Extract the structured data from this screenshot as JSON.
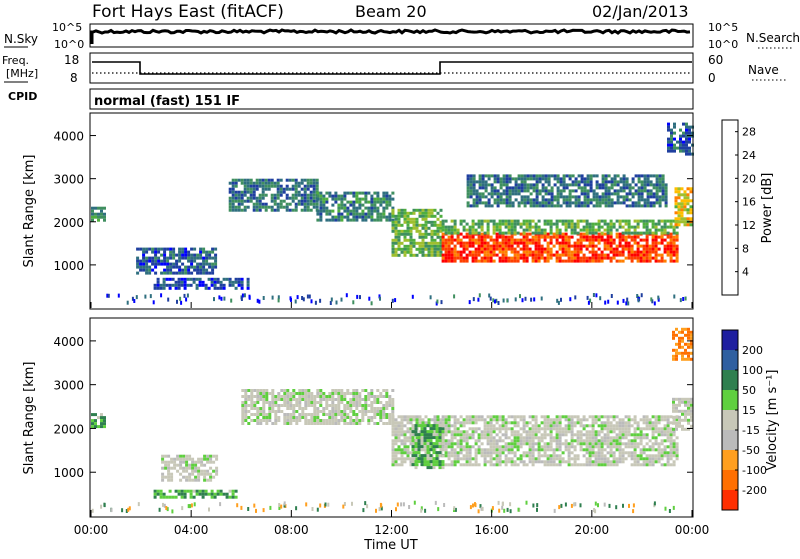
{
  "header": {
    "station": "Fort Hays East (fitACF)",
    "beam": "Beam 20",
    "date": "02/Jan/2013"
  },
  "noise_panel": {
    "left_label": "N.Sky",
    "right_label": "N.Search",
    "left_ticks": [
      "10^5",
      "10^0"
    ],
    "right_ticks": [
      "10^5",
      "10^0"
    ]
  },
  "freq_panel": {
    "left_label_line1": "Freq.",
    "left_label_line2": "[MHz]",
    "right_label": "Nave",
    "left_ticks": [
      "18",
      "8"
    ],
    "right_ticks": [
      "60",
      "0"
    ]
  },
  "cpid_panel": {
    "label": "CPID",
    "text": "normal (fast) 151 IF"
  },
  "colors": {
    "power": [
      "#0000ff",
      "#1f3f9f",
      "#2f6f7f",
      "#3f8f5f",
      "#4fae3f",
      "#9fbf2f",
      "#ffbf00",
      "#ff7f00",
      "#ff3f00",
      "#ff0000"
    ],
    "velocity": [
      "#1f1f9f",
      "#2f5fa0",
      "#2f7f4f",
      "#5fcf3f",
      "#c8c8b8",
      "#bbbbbb",
      "#ff9f1f",
      "#ff6f00",
      "#ff2f00",
      "#ff0000"
    ]
  },
  "chart_data": [
    {
      "type": "heatmap",
      "name": "power",
      "ylabel": "Slant Range [km]",
      "xlabel": "",
      "xlim": [
        "00:00",
        "24:00"
      ],
      "ylim": [
        0,
        4500
      ],
      "yticks": [
        1000,
        2000,
        3000,
        4000
      ],
      "colorbar_label": "Power [dB]",
      "colorbar_ticks": [
        4,
        8,
        12,
        16,
        20,
        24,
        28
      ],
      "colorbar_range": [
        0,
        30
      ],
      "regions": [
        {
          "t0": 0.0,
          "t1": 0.5,
          "r0": 2050,
          "r1": 2350,
          "value": 10
        },
        {
          "t0": 1.8,
          "t1": 5.0,
          "r0": 800,
          "r1": 1400,
          "value": 6
        },
        {
          "t0": 2.5,
          "t1": 6.3,
          "r0": 450,
          "r1": 700,
          "value": 5
        },
        {
          "t0": 5.5,
          "t1": 9.0,
          "r0": 2300,
          "r1": 3000,
          "value": 8
        },
        {
          "t0": 9.0,
          "t1": 12.0,
          "r0": 2050,
          "r1": 2700,
          "value": 9
        },
        {
          "t0": 12.0,
          "t1": 14.0,
          "r0": 1200,
          "r1": 2300,
          "value": 14
        },
        {
          "t0": 14.0,
          "t1": 23.4,
          "r0": 1100,
          "r1": 1750,
          "value": 26
        },
        {
          "t0": 14.0,
          "t1": 23.4,
          "r0": 1750,
          "r1": 2050,
          "value": 13
        },
        {
          "t0": 15.0,
          "t1": 23.0,
          "r0": 2400,
          "r1": 3100,
          "value": 8
        },
        {
          "t0": 23.3,
          "t1": 24.0,
          "r0": 1900,
          "r1": 2800,
          "value": 18
        },
        {
          "t0": 23.0,
          "t1": 24.0,
          "r0": 3600,
          "r1": 4300,
          "value": 6
        }
      ]
    },
    {
      "type": "heatmap",
      "name": "velocity",
      "ylabel": "Slant Range [km]",
      "xlabel": "Time UT",
      "xlim": [
        "00:00",
        "24:00"
      ],
      "xticks": [
        "00:00",
        "04:00",
        "08:00",
        "12:00",
        "16:00",
        "20:00",
        "00:00"
      ],
      "ylim": [
        0,
        4500
      ],
      "yticks": [
        1000,
        2000,
        3000,
        4000
      ],
      "colorbar_label": "Velocity [m s⁻¹]",
      "colorbar_ticks": [
        200,
        100,
        50,
        15,
        -15,
        -50,
        -100,
        -200
      ],
      "regions": [
        {
          "t0": 0.0,
          "t1": 0.5,
          "r0": 2050,
          "r1": 2350,
          "value": 30
        },
        {
          "t0": 2.8,
          "t1": 5.0,
          "r0": 850,
          "r1": 1400,
          "value": 0
        },
        {
          "t0": 2.5,
          "t1": 5.8,
          "r0": 400,
          "r1": 600,
          "value": 30
        },
        {
          "t0": 6.0,
          "t1": 12.0,
          "r0": 2100,
          "r1": 2900,
          "value": 0
        },
        {
          "t0": 12.0,
          "t1": 14.0,
          "r0": 1200,
          "r1": 2300,
          "value": 0
        },
        {
          "t0": 12.8,
          "t1": 14.0,
          "r0": 1100,
          "r1": 2100,
          "value": 30
        },
        {
          "t0": 14.0,
          "t1": 23.4,
          "r0": 1200,
          "r1": 2300,
          "value": 0
        },
        {
          "t0": 23.2,
          "t1": 24.0,
          "r0": 2000,
          "r1": 2700,
          "value": 0
        },
        {
          "t0": 23.2,
          "t1": 24.0,
          "r0": 3600,
          "r1": 4300,
          "value": -80
        }
      ]
    }
  ]
}
